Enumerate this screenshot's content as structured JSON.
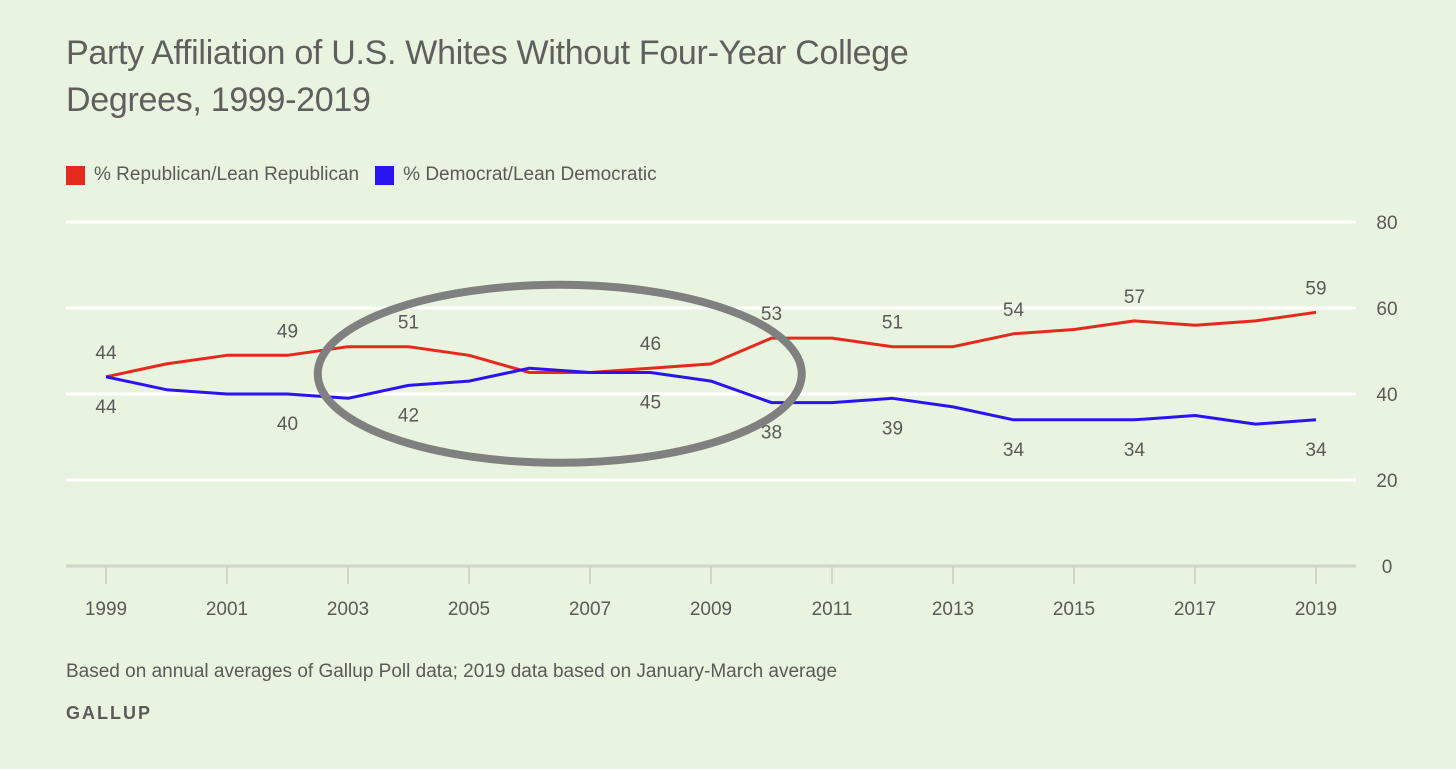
{
  "chart_data": {
    "type": "line",
    "title_lines": [
      "Party Affiliation of U.S. Whites Without Four-Year College",
      "Degrees, 1999-2019"
    ],
    "x": [
      1999,
      2000,
      2001,
      2002,
      2003,
      2004,
      2005,
      2006,
      2007,
      2008,
      2009,
      2010,
      2011,
      2012,
      2013,
      2014,
      2015,
      2016,
      2017,
      2018,
      2019
    ],
    "x_tick_labels": [
      "1999",
      "2001",
      "2003",
      "2005",
      "2007",
      "2009",
      "2011",
      "2013",
      "2015",
      "2017",
      "2019"
    ],
    "y_ticks": [
      0,
      20,
      40,
      60,
      80
    ],
    "ylim": [
      0,
      80
    ],
    "y_axis_side": "right",
    "grid": true,
    "legend_position": "top-left",
    "series": [
      {
        "name": "% Republican/Lean Republican",
        "color": "#e5291d",
        "values": [
          44,
          47,
          49,
          49,
          51,
          51,
          49,
          45,
          45,
          46,
          47,
          53,
          53,
          51,
          51,
          54,
          55,
          57,
          56,
          57,
          59
        ],
        "labeled_points": [
          [
            1999,
            44
          ],
          [
            2002,
            49
          ],
          [
            2004,
            51
          ],
          [
            2008,
            46
          ],
          [
            2010,
            53
          ],
          [
            2012,
            51
          ],
          [
            2014,
            54
          ],
          [
            2016,
            57
          ],
          [
            2019,
            59
          ]
        ]
      },
      {
        "name": "% Democrat/Lean Democratic",
        "color": "#2b13f0",
        "values": [
          44,
          41,
          40,
          40,
          39,
          42,
          43,
          46,
          45,
          45,
          43,
          38,
          38,
          39,
          37,
          34,
          34,
          34,
          35,
          33,
          34
        ],
        "labeled_points": [
          [
            1999,
            44
          ],
          [
            2002,
            40
          ],
          [
            2004,
            42
          ],
          [
            2008,
            45
          ],
          [
            2010,
            38
          ],
          [
            2012,
            39
          ],
          [
            2014,
            34
          ],
          [
            2016,
            34
          ],
          [
            2019,
            34
          ]
        ]
      }
    ],
    "annotations": [
      {
        "type": "ellipse-highlight",
        "x_range": [
          2002.5,
          2010.5
        ],
        "y_center": 44,
        "color": "#808080"
      }
    ],
    "footnote": "Based on annual averages of Gallup Poll data; 2019 data based on January-March average",
    "source": "GALLUP"
  },
  "colors": {
    "background": "#e8f4df",
    "gridline": "#ffffff",
    "axis": "#cfd6c8",
    "text": "#5a5a5a",
    "highlight": "#808080"
  }
}
